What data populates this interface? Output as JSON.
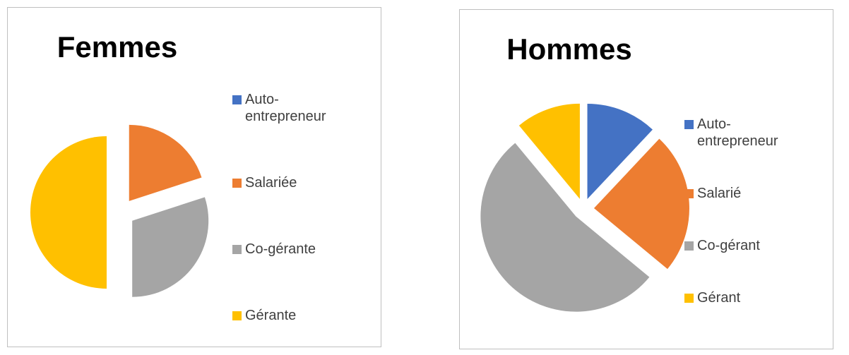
{
  "chart_data": [
    {
      "type": "pie",
      "title": "Femmes",
      "categories": [
        "Auto-entrepreneur",
        "Salariée",
        "Co-gérante",
        "Gérante"
      ],
      "values": [
        0,
        20,
        30,
        50
      ],
      "colors": [
        "#4472c4",
        "#ed7d31",
        "#a5a5a5",
        "#ffc000"
      ],
      "legend": "right"
    },
    {
      "type": "pie",
      "title": "Hommes",
      "categories": [
        "Auto-entrepreneur",
        "Salarié",
        "Co-gérant",
        "Gérant"
      ],
      "values": [
        12,
        24,
        53,
        11
      ],
      "colors": [
        "#4472c4",
        "#ed7d31",
        "#a5a5a5",
        "#ffc000"
      ],
      "legend": "right"
    }
  ]
}
